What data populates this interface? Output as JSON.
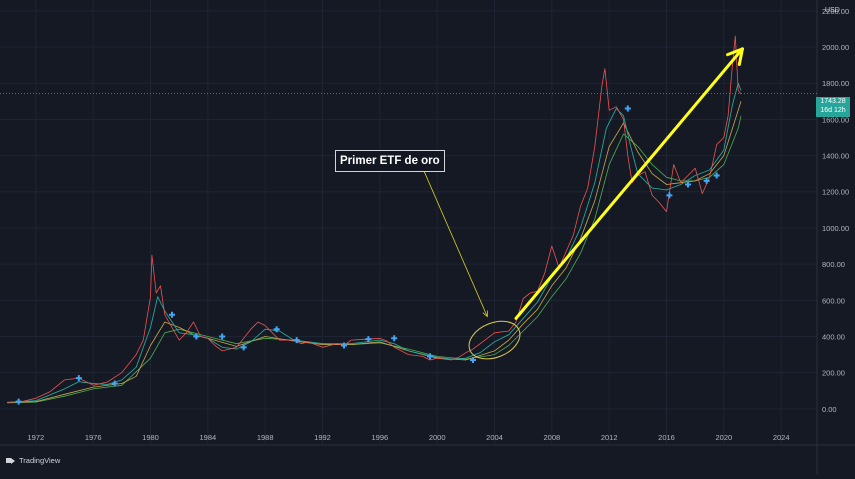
{
  "chart_data": {
    "type": "line",
    "ylim": [
      -200,
      2260
    ],
    "xlim": [
      1969.5,
      2026.5
    ],
    "y_ticks": [
      "2200.00",
      "2000.00",
      "1800.00",
      "1600.00",
      "1400.00",
      "1200.00",
      "1000.00",
      "800.00",
      "600.00",
      "400.00",
      "200.00",
      "0.00"
    ],
    "y_tick_values": [
      2200,
      2000,
      1800,
      1600,
      1400,
      1200,
      1000,
      800,
      600,
      400,
      200,
      0
    ],
    "x_ticks": [
      "1972",
      "1976",
      "1980",
      "1984",
      "1988",
      "1992",
      "1996",
      "2000",
      "2004",
      "2008",
      "2012",
      "2016",
      "2020",
      "2024"
    ],
    "x_tick_values": [
      1972,
      1976,
      1980,
      1984,
      1988,
      1992,
      1996,
      2000,
      2004,
      2008,
      2012,
      2016,
      2020,
      2024
    ],
    "currency": "USD",
    "last_price": "1743.28",
    "countdown": "16d 12h",
    "last_value": 1743.28,
    "series": [
      {
        "color": "#ef5350",
        "x": [
          1970,
          1971,
          1972,
          1973,
          1974,
          1975,
          1976,
          1977,
          1978,
          1979,
          1979.5,
          1980,
          1980.1,
          1980.4,
          1980.7,
          1981,
          1981.5,
          1982,
          1982.5,
          1983,
          1983.5,
          1984,
          1984.5,
          1985,
          1985.5,
          1986,
          1986.5,
          1987,
          1987.5,
          1988,
          1988.5,
          1989,
          1990,
          1990.5,
          1991,
          1992,
          1993,
          1993.5,
          1994,
          1995,
          1996,
          1996.5,
          1997,
          1997.5,
          1998,
          1999,
          1999.5,
          2000,
          2001,
          2001.5,
          2002,
          2002.5,
          2003,
          2004,
          2005,
          2005.5,
          2006,
          2006.5,
          2007,
          2007.5,
          2008,
          2008.5,
          2009,
          2009.5,
          2010,
          2010.5,
          2011,
          2011.5,
          2011.7,
          2012,
          2012.5,
          2013,
          2013.3,
          2013.6,
          2014,
          2014.5,
          2015,
          2015.5,
          2016,
          2016.5,
          2017,
          2017.5,
          2018,
          2018.5,
          2019,
          2019.5,
          2020,
          2020.3,
          2020.6,
          2020.8,
          2021,
          2021.2
        ],
        "y": [
          36,
          40,
          58,
          95,
          160,
          170,
          130,
          148,
          200,
          300,
          380,
          620,
          850,
          640,
          680,
          520,
          450,
          380,
          420,
          480,
          400,
          390,
          350,
          320,
          330,
          340,
          390,
          440,
          480,
          460,
          420,
          380,
          380,
          360,
          370,
          340,
          360,
          350,
          380,
          385,
          390,
          375,
          340,
          320,
          300,
          290,
          270,
          280,
          270,
          285,
          310,
          330,
          360,
          420,
          430,
          480,
          610,
          640,
          650,
          750,
          900,
          780,
          870,
          960,
          1120,
          1220,
          1450,
          1790,
          1880,
          1650,
          1670,
          1600,
          1400,
          1250,
          1290,
          1310,
          1180,
          1140,
          1090,
          1350,
          1250,
          1290,
          1330,
          1190,
          1280,
          1460,
          1500,
          1620,
          1900,
          2060,
          1760,
          1740
        ],
        "w": 0.8
      },
      {
        "color": "#26a69a",
        "x": [
          1970,
          1972,
          1974,
          1975,
          1976,
          1977,
          1978,
          1979,
          1980,
          1980.5,
          1981,
          1982,
          1983,
          1984,
          1985,
          1986,
          1987,
          1988,
          1989,
          1990,
          1992,
          1994,
          1996,
          1997,
          1998,
          2000,
          2001,
          2002,
          2003,
          2004,
          2005,
          2006,
          2007,
          2008,
          2009,
          2010,
          2011,
          2011.8,
          2012.5,
          2013,
          2013.5,
          2014,
          2015,
          2016,
          2017,
          2018,
          2019,
          2020,
          2020.6,
          2021,
          2021.2
        ],
        "y": [
          35,
          45,
          110,
          150,
          140,
          135,
          160,
          230,
          450,
          620,
          540,
          420,
          410,
          390,
          340,
          330,
          370,
          440,
          430,
          380,
          360,
          360,
          380,
          360,
          320,
          285,
          275,
          280,
          310,
          370,
          410,
          500,
          590,
          730,
          830,
          1000,
          1250,
          1550,
          1660,
          1620,
          1450,
          1300,
          1220,
          1210,
          1240,
          1290,
          1320,
          1430,
          1680,
          1800,
          1760
        ],
        "w": 0.9
      },
      {
        "color": "#c7a94b",
        "x": [
          1970,
          1972,
          1974,
          1976,
          1978,
          1979,
          1980,
          1981,
          1982,
          1983,
          1984,
          1986,
          1988,
          1990,
          1992,
          1994,
          1996,
          1998,
          2000,
          2002,
          2004,
          2005,
          2006,
          2007,
          2008,
          2009,
          2010,
          2011,
          2012,
          2013,
          2014,
          2015,
          2016,
          2017,
          2018,
          2019,
          2020,
          2021,
          2021.2
        ],
        "y": [
          35,
          40,
          80,
          120,
          140,
          180,
          350,
          480,
          450,
          410,
          390,
          345,
          400,
          375,
          355,
          355,
          370,
          320,
          280,
          270,
          320,
          380,
          470,
          550,
          680,
          780,
          940,
          1150,
          1450,
          1580,
          1420,
          1300,
          1240,
          1250,
          1260,
          1300,
          1400,
          1650,
          1700
        ],
        "w": 0.8
      },
      {
        "color": "#4caf50",
        "x": [
          1970,
          1972,
          1974,
          1976,
          1978,
          1980,
          1981,
          1982,
          1983,
          1984,
          1986,
          1988,
          1990,
          1992,
          1994,
          1996,
          1998,
          2000,
          2002,
          2004,
          2005,
          2006,
          2007,
          2008,
          2009,
          2010,
          2011,
          2012,
          2013,
          2014,
          2015,
          2016,
          2017,
          2018,
          2019,
          2020,
          2021,
          2021.2
        ],
        "y": [
          33,
          37,
          70,
          110,
          130,
          280,
          420,
          440,
          420,
          400,
          360,
          390,
          380,
          360,
          355,
          365,
          330,
          290,
          275,
          300,
          350,
          430,
          510,
          620,
          720,
          860,
          1050,
          1350,
          1520,
          1450,
          1350,
          1280,
          1260,
          1260,
          1280,
          1350,
          1550,
          1620
        ],
        "w": 0.8
      }
    ],
    "markers": [
      {
        "x": 1970.8,
        "y": 40
      },
      {
        "x": 1975,
        "y": 170
      },
      {
        "x": 1977.5,
        "y": 140
      },
      {
        "x": 1981.5,
        "y": 520
      },
      {
        "x": 1983.2,
        "y": 400
      },
      {
        "x": 1985,
        "y": 400
      },
      {
        "x": 1986.5,
        "y": 340
      },
      {
        "x": 1988.8,
        "y": 440
      },
      {
        "x": 1990.2,
        "y": 380
      },
      {
        "x": 1993.5,
        "y": 350
      },
      {
        "x": 1995.2,
        "y": 385
      },
      {
        "x": 1997,
        "y": 390
      },
      {
        "x": 1999.5,
        "y": 290
      },
      {
        "x": 2002.5,
        "y": 270
      },
      {
        "x": 2013.3,
        "y": 1660
      },
      {
        "x": 2016.2,
        "y": 1180
      },
      {
        "x": 2017.5,
        "y": 1240
      },
      {
        "x": 2018.8,
        "y": 1260
      },
      {
        "x": 2019.5,
        "y": 1290
      }
    ],
    "arrow": {
      "x1": 2005.5,
      "y1": 500,
      "x2": 2021.3,
      "y2": 1990,
      "color": "#ffff1a"
    },
    "pointer": {
      "x1": 1998.5,
      "y1": 1420,
      "x2": 2003.5,
      "y2": 510,
      "color": "#d8d020"
    },
    "ellipse": {
      "cx": 2004.0,
      "cy": 380,
      "rx": 1.85,
      "ry": 95,
      "color": "#d8c850"
    },
    "last_line_color": "#26a69a"
  },
  "annotation": {
    "label": "Primer ETF de oro"
  },
  "branding": {
    "logo": "TradingView"
  }
}
